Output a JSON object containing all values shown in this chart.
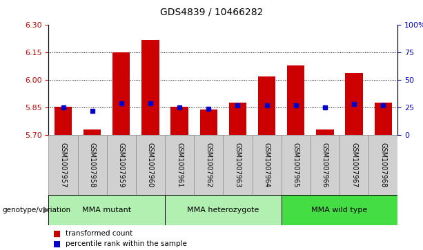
{
  "title": "GDS4839 / 10466282",
  "samples": [
    "GSM1007957",
    "GSM1007958",
    "GSM1007959",
    "GSM1007960",
    "GSM1007961",
    "GSM1007962",
    "GSM1007963",
    "GSM1007964",
    "GSM1007965",
    "GSM1007966",
    "GSM1007967",
    "GSM1007968"
  ],
  "bar_tops": [
    5.855,
    5.73,
    6.15,
    6.22,
    5.855,
    5.84,
    5.875,
    6.02,
    6.08,
    5.73,
    6.04,
    5.875
  ],
  "bar_bottom": 5.7,
  "blue_dot_pct": [
    25,
    22,
    29,
    29,
    25,
    24,
    27,
    27,
    27,
    25,
    28,
    27
  ],
  "ylim": [
    5.7,
    6.3
  ],
  "y2lim": [
    0,
    100
  ],
  "yticks": [
    5.7,
    5.85,
    6.0,
    6.15,
    6.3
  ],
  "y2ticks": [
    0,
    25,
    50,
    75,
    100
  ],
  "hlines": [
    5.85,
    6.0,
    6.15
  ],
  "groups": [
    {
      "label": "MMA mutant",
      "start": 0,
      "end": 4
    },
    {
      "label": "MMA heterozygote",
      "start": 4,
      "end": 8
    },
    {
      "label": "MMA wild type",
      "start": 8,
      "end": 12
    }
  ],
  "group_colors": [
    "#b2f0b2",
    "#b2f0b2",
    "#44dd44"
  ],
  "bar_color": "#CC0000",
  "dot_color": "#0000CC",
  "sample_cell_color": "#d0d0d0",
  "legend_items": [
    {
      "label": "transformed count",
      "color": "#CC0000"
    },
    {
      "label": "percentile rank within the sample",
      "color": "#0000CC"
    }
  ],
  "genotype_label": "genotype/variation",
  "title_fontsize": 10,
  "tick_fontsize": 8,
  "sample_fontsize": 7
}
